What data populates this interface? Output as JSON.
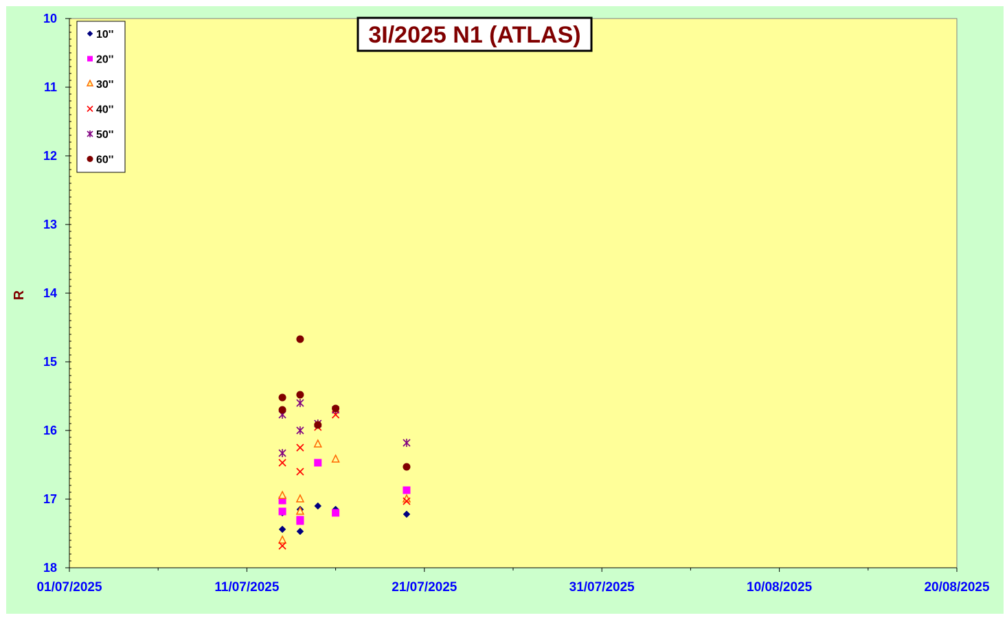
{
  "colors": {
    "outer_background": "#ccffcc",
    "plot_background": "#ffff99",
    "axis_text": "#0000ff",
    "title_text": "#800000"
  },
  "chart_data": {
    "type": "scatter",
    "title": "3I/2025 N1 (ATLAS)",
    "xlabel": "",
    "ylabel": "R",
    "x_type": "date",
    "x_ticks": [
      "01/07/2025",
      "11/07/2025",
      "21/07/2025",
      "31/07/2025",
      "10/08/2025",
      "20/08/2025"
    ],
    "xlim": [
      "2025-07-01",
      "2025-08-20"
    ],
    "ylim": [
      10,
      18
    ],
    "y_inverted": true,
    "y_ticks": [
      "10",
      "11",
      "12",
      "13",
      "14",
      "15",
      "16",
      "17",
      "18"
    ],
    "grid": false,
    "legend_position": "top-left",
    "series": [
      {
        "name": "10''",
        "marker": "diamond",
        "color": "#000080",
        "points": [
          {
            "x": "2025-07-13",
            "y": 17.2
          },
          {
            "x": "2025-07-13",
            "y": 17.44
          },
          {
            "x": "2025-07-14",
            "y": 17.15
          },
          {
            "x": "2025-07-14",
            "y": 17.47
          },
          {
            "x": "2025-07-15",
            "y": 17.1
          },
          {
            "x": "2025-07-16",
            "y": 17.15
          },
          {
            "x": "2025-07-20",
            "y": 17.22
          }
        ]
      },
      {
        "name": "20''",
        "marker": "square",
        "color": "#ff00ff",
        "points": [
          {
            "x": "2025-07-13",
            "y": 17.02
          },
          {
            "x": "2025-07-13",
            "y": 17.18
          },
          {
            "x": "2025-07-14",
            "y": 17.3
          },
          {
            "x": "2025-07-14",
            "y": 17.32
          },
          {
            "x": "2025-07-15",
            "y": 16.47
          },
          {
            "x": "2025-07-16",
            "y": 17.2
          },
          {
            "x": "2025-07-20",
            "y": 16.87
          }
        ]
      },
      {
        "name": "30''",
        "marker": "triangle",
        "color": "#ff6600",
        "points": [
          {
            "x": "2025-07-13",
            "y": 16.95
          },
          {
            "x": "2025-07-13",
            "y": 17.6
          },
          {
            "x": "2025-07-14",
            "y": 17.0
          },
          {
            "x": "2025-07-14",
            "y": 17.18
          },
          {
            "x": "2025-07-15",
            "y": 16.2
          },
          {
            "x": "2025-07-16",
            "y": 16.42
          },
          {
            "x": "2025-07-20",
            "y": 17.0
          }
        ]
      },
      {
        "name": "40''",
        "marker": "x",
        "color": "#ff0000",
        "points": [
          {
            "x": "2025-07-13",
            "y": 16.47
          },
          {
            "x": "2025-07-13",
            "y": 17.68
          },
          {
            "x": "2025-07-14",
            "y": 16.25
          },
          {
            "x": "2025-07-14",
            "y": 16.6
          },
          {
            "x": "2025-07-15",
            "y": 15.95
          },
          {
            "x": "2025-07-16",
            "y": 15.77
          },
          {
            "x": "2025-07-20",
            "y": 17.03
          }
        ]
      },
      {
        "name": "50''",
        "marker": "star",
        "color": "#800080",
        "points": [
          {
            "x": "2025-07-13",
            "y": 15.77
          },
          {
            "x": "2025-07-13",
            "y": 16.33
          },
          {
            "x": "2025-07-14",
            "y": 15.6
          },
          {
            "x": "2025-07-14",
            "y": 16.0
          },
          {
            "x": "2025-07-15",
            "y": 15.9
          },
          {
            "x": "2025-07-16",
            "y": 15.7
          },
          {
            "x": "2025-07-20",
            "y": 16.18
          }
        ]
      },
      {
        "name": "60''",
        "marker": "circle",
        "color": "#800000",
        "points": [
          {
            "x": "2025-07-13",
            "y": 15.52
          },
          {
            "x": "2025-07-13",
            "y": 15.7
          },
          {
            "x": "2025-07-14",
            "y": 14.67
          },
          {
            "x": "2025-07-14",
            "y": 15.48
          },
          {
            "x": "2025-07-15",
            "y": 15.92
          },
          {
            "x": "2025-07-16",
            "y": 15.68
          },
          {
            "x": "2025-07-20",
            "y": 16.53
          }
        ]
      }
    ]
  }
}
